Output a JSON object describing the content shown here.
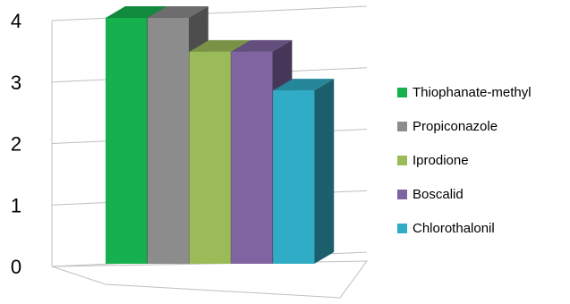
{
  "chart_data": {
    "type": "bar",
    "title": "",
    "xlabel": "",
    "ylabel": "",
    "ylim": [
      0,
      4
    ],
    "y_ticks": [
      0,
      1,
      2,
      3,
      4
    ],
    "three_d": true,
    "grid": true,
    "legend_position": "right",
    "series": [
      {
        "name": "Thiophanate-methyl",
        "value": 4.0,
        "color": "#16B14E"
      },
      {
        "name": "Propiconazole",
        "value": 4.0,
        "color": "#8C8C8C"
      },
      {
        "name": "Iprodione",
        "value": 3.45,
        "color": "#9BBB59"
      },
      {
        "name": "Boscalid",
        "value": 3.45,
        "color": "#8064A2"
      },
      {
        "name": "Chlorothalonil",
        "value": 2.82,
        "color": "#31ACC6"
      }
    ]
  }
}
